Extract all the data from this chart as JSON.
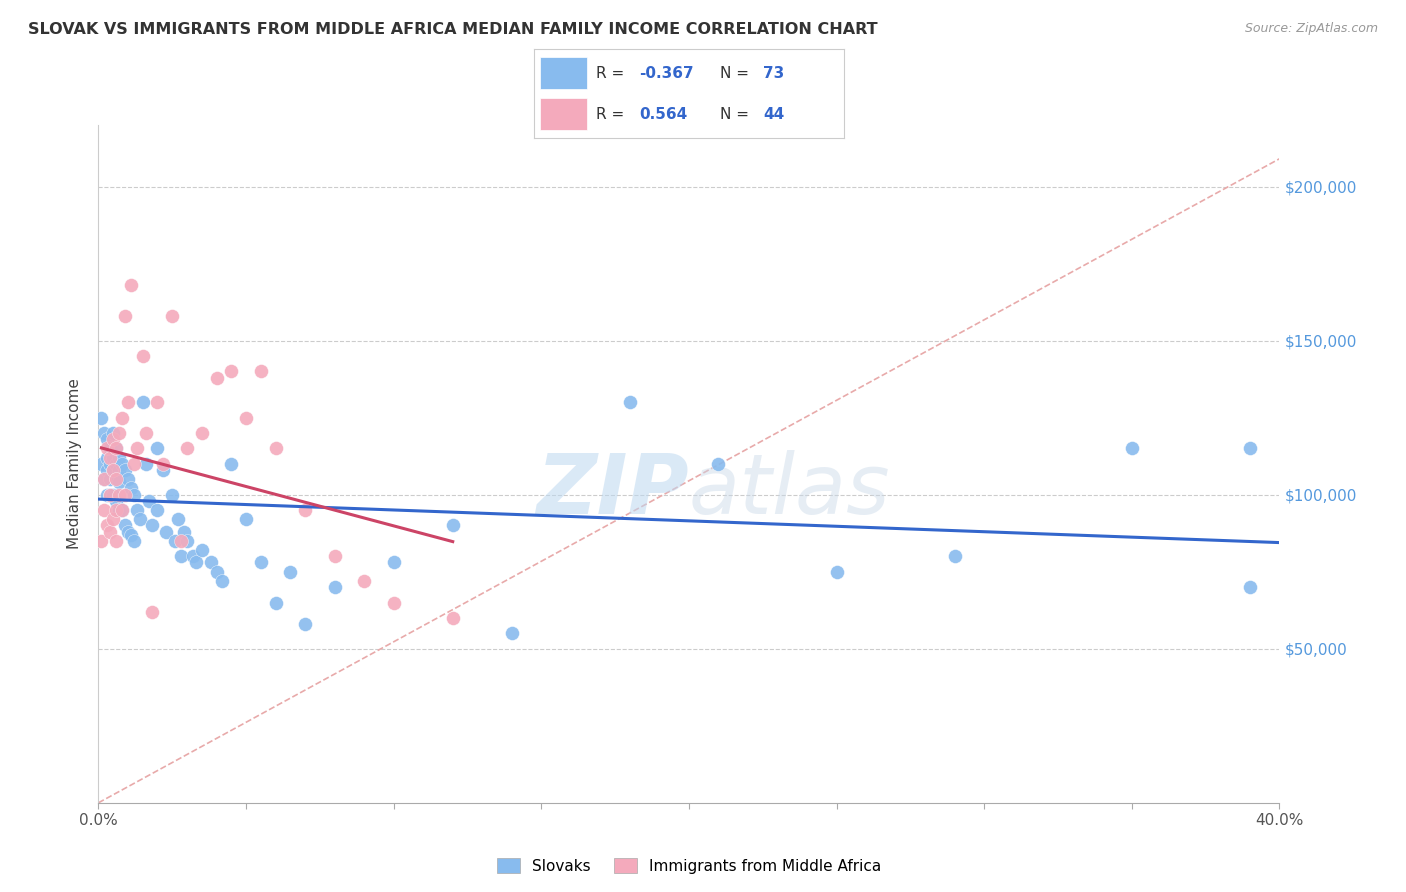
{
  "title": "SLOVAK VS IMMIGRANTS FROM MIDDLE AFRICA MEDIAN FAMILY INCOME CORRELATION CHART",
  "source": "Source: ZipAtlas.com",
  "ylabel": "Median Family Income",
  "ytick_labels": [
    "$50,000",
    "$100,000",
    "$150,000",
    "$200,000"
  ],
  "ytick_values": [
    50000,
    100000,
    150000,
    200000
  ],
  "ymin": 0,
  "ymax": 220000,
  "xmin": 0.0,
  "xmax": 0.4,
  "legend_label1": "Slovaks",
  "legend_label2": "Immigrants from Middle Africa",
  "r1": "-0.367",
  "n1": "73",
  "r2": "0.564",
  "n2": "44",
  "color_blue": "#88BBEE",
  "color_pink": "#F4AABC",
  "color_line_blue": "#3366CC",
  "color_line_pink": "#CC4466",
  "color_diag": "#DDAAAA",
  "watermark_zip": "ZIP",
  "watermark_atlas": "atlas",
  "blue_points_x": [
    0.001,
    0.001,
    0.002,
    0.002,
    0.003,
    0.003,
    0.003,
    0.003,
    0.004,
    0.004,
    0.004,
    0.004,
    0.005,
    0.005,
    0.005,
    0.005,
    0.006,
    0.006,
    0.006,
    0.006,
    0.007,
    0.007,
    0.007,
    0.007,
    0.008,
    0.008,
    0.009,
    0.009,
    0.01,
    0.01,
    0.011,
    0.011,
    0.012,
    0.012,
    0.013,
    0.014,
    0.015,
    0.016,
    0.017,
    0.018,
    0.02,
    0.02,
    0.022,
    0.023,
    0.025,
    0.026,
    0.027,
    0.028,
    0.029,
    0.03,
    0.032,
    0.033,
    0.035,
    0.038,
    0.04,
    0.042,
    0.045,
    0.05,
    0.055,
    0.06,
    0.065,
    0.07,
    0.08,
    0.1,
    0.12,
    0.14,
    0.18,
    0.21,
    0.25,
    0.29,
    0.35,
    0.39,
    0.39
  ],
  "blue_points_y": [
    125000,
    110000,
    120000,
    105000,
    118000,
    112000,
    108000,
    100000,
    115000,
    110000,
    105000,
    100000,
    120000,
    112000,
    108000,
    100000,
    115000,
    110000,
    105000,
    98000,
    112000,
    108000,
    104000,
    95000,
    110000,
    95000,
    108000,
    90000,
    105000,
    88000,
    102000,
    87000,
    100000,
    85000,
    95000,
    92000,
    130000,
    110000,
    98000,
    90000,
    115000,
    95000,
    108000,
    88000,
    100000,
    85000,
    92000,
    80000,
    88000,
    85000,
    80000,
    78000,
    82000,
    78000,
    75000,
    72000,
    110000,
    92000,
    78000,
    65000,
    75000,
    58000,
    70000,
    78000,
    90000,
    55000,
    130000,
    110000,
    75000,
    80000,
    115000,
    115000,
    70000
  ],
  "pink_points_x": [
    0.001,
    0.002,
    0.002,
    0.003,
    0.003,
    0.004,
    0.004,
    0.004,
    0.005,
    0.005,
    0.005,
    0.006,
    0.006,
    0.006,
    0.006,
    0.007,
    0.007,
    0.008,
    0.008,
    0.009,
    0.009,
    0.01,
    0.011,
    0.012,
    0.013,
    0.015,
    0.016,
    0.018,
    0.02,
    0.022,
    0.025,
    0.028,
    0.03,
    0.035,
    0.04,
    0.045,
    0.05,
    0.055,
    0.06,
    0.07,
    0.08,
    0.09,
    0.1,
    0.12
  ],
  "pink_points_y": [
    85000,
    105000,
    95000,
    115000,
    90000,
    112000,
    100000,
    88000,
    118000,
    108000,
    92000,
    115000,
    105000,
    95000,
    85000,
    120000,
    100000,
    125000,
    95000,
    158000,
    100000,
    130000,
    168000,
    110000,
    115000,
    145000,
    120000,
    62000,
    130000,
    110000,
    158000,
    85000,
    115000,
    120000,
    138000,
    140000,
    125000,
    140000,
    115000,
    95000,
    80000,
    72000,
    65000,
    60000
  ]
}
